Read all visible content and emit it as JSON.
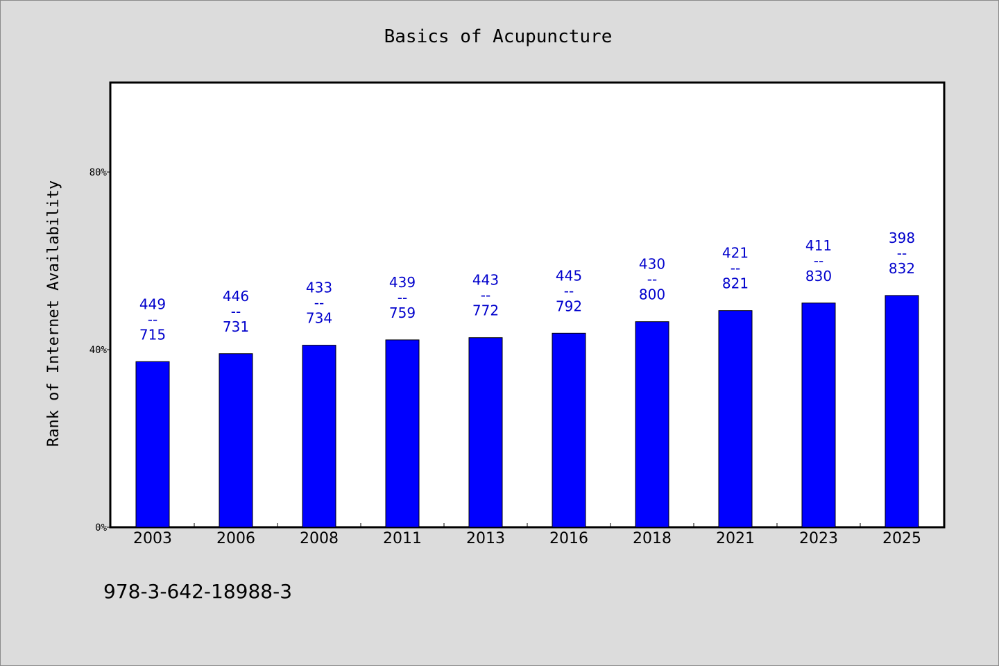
{
  "chart_data": {
    "type": "bar",
    "title": "Basics of Acupuncture",
    "xlabel": "",
    "ylabel": "Rank of Internet Availability",
    "ylim": [
      0,
      100
    ],
    "yticks": [
      0,
      40,
      80
    ],
    "ytick_labels": [
      "0%",
      "40%",
      "80%"
    ],
    "grid": false,
    "bar_color": "#0000ff",
    "label_color": "#0000cc",
    "categories": [
      "2003",
      "2006",
      "2008",
      "2011",
      "2013",
      "2016",
      "2018",
      "2021",
      "2023",
      "2025"
    ],
    "values": [
      37.3,
      39.1,
      41.0,
      42.2,
      42.7,
      43.7,
      46.3,
      48.8,
      50.5,
      52.2
    ],
    "data_labels": [
      [
        "449",
        "--",
        "715"
      ],
      [
        "446",
        "--",
        "731"
      ],
      [
        "433",
        "--",
        "734"
      ],
      [
        "439",
        "--",
        "759"
      ],
      [
        "443",
        "--",
        "772"
      ],
      [
        "445",
        "--",
        "792"
      ],
      [
        "430",
        "--",
        "800"
      ],
      [
        "421",
        "--",
        "821"
      ],
      [
        "411",
        "--",
        "830"
      ],
      [
        "398",
        "--",
        "832"
      ]
    ]
  },
  "footnote": "978-3-642-18988-3"
}
